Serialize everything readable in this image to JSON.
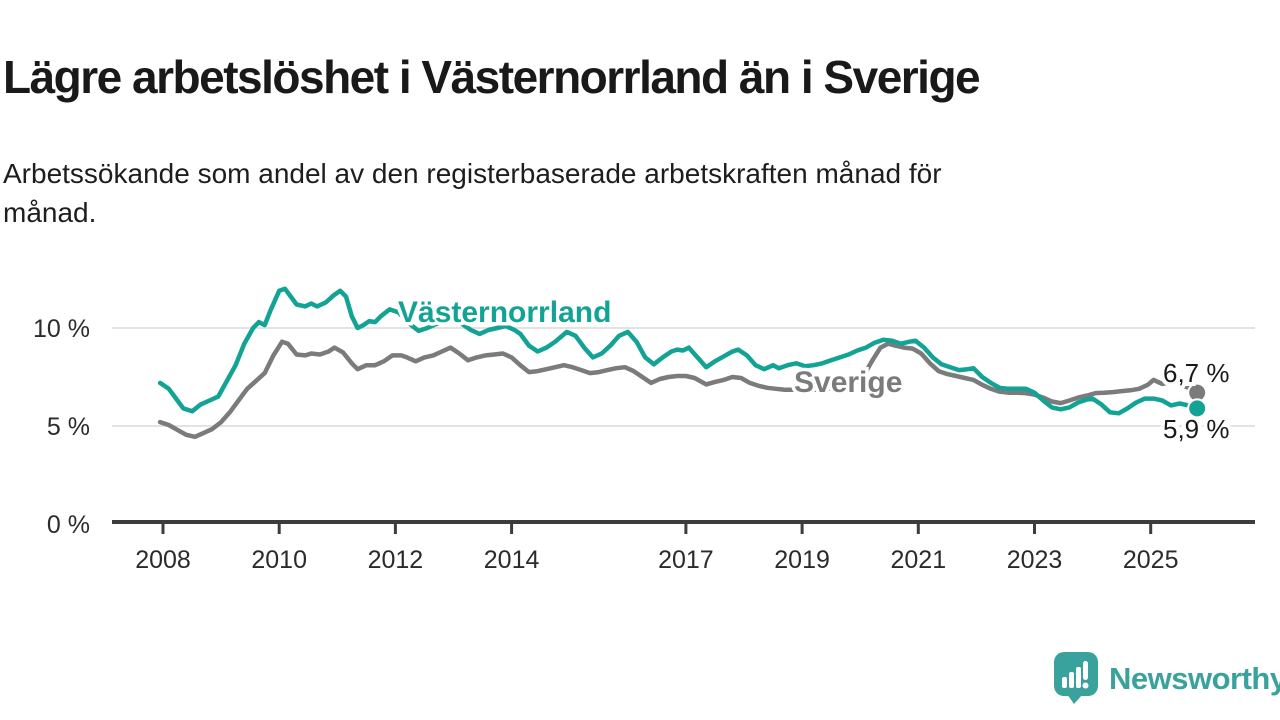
{
  "header": {
    "title": "Lägre arbetslöshet i Västernorrland än i Sverige",
    "subtitle_line1": "Arbetssökande som andel av den registerbaserade arbetskraften månad för",
    "subtitle_line2": "månad."
  },
  "chart_data": {
    "type": "line",
    "title": "Lägre arbetslöshet i Västernorrland än i Sverige",
    "subtitle": "Arbetssökande som andel av den registerbaserade arbetskraften månad för månad.",
    "grid": "horizontal-only",
    "legend_position": "inline-labels-on-lines",
    "xlim": [
      2007.9,
      2026.8
    ],
    "ylim": [
      0,
      12.6
    ],
    "y_axis": {
      "ticks": [
        {
          "value": 0,
          "label": "0 %"
        },
        {
          "value": 5,
          "label": "5 %"
        },
        {
          "value": 10,
          "label": "10 %"
        }
      ],
      "gridline_values": [
        5,
        10
      ]
    },
    "x_axis": {
      "ticks": [
        {
          "year": 2008,
          "label": "2008"
        },
        {
          "year": 2010,
          "label": "2010"
        },
        {
          "year": 2012,
          "label": "2012"
        },
        {
          "year": 2014,
          "label": "2014"
        },
        {
          "year": 2017,
          "label": "2017"
        },
        {
          "year": 2019,
          "label": "2019"
        },
        {
          "year": 2021,
          "label": "2021"
        },
        {
          "year": 2023,
          "label": "2023"
        },
        {
          "year": 2025,
          "label": "2025"
        }
      ]
    },
    "series": [
      {
        "name": "Västernorrland",
        "color": "#13a394",
        "end_label": "5,9 %",
        "end_value": 5.9,
        "points": [
          [
            2007.95,
            7.2
          ],
          [
            2008.1,
            6.9
          ],
          [
            2008.2,
            6.5
          ],
          [
            2008.35,
            5.9
          ],
          [
            2008.5,
            5.75
          ],
          [
            2008.65,
            6.1
          ],
          [
            2008.8,
            6.3
          ],
          [
            2008.95,
            6.5
          ],
          [
            2009.1,
            7.3
          ],
          [
            2009.25,
            8.1
          ],
          [
            2009.4,
            9.2
          ],
          [
            2009.55,
            10.0
          ],
          [
            2009.65,
            10.3
          ],
          [
            2009.75,
            10.15
          ],
          [
            2009.85,
            10.9
          ],
          [
            2010.0,
            11.9
          ],
          [
            2010.1,
            12.0
          ],
          [
            2010.2,
            11.6
          ],
          [
            2010.3,
            11.2
          ],
          [
            2010.45,
            11.1
          ],
          [
            2010.55,
            11.25
          ],
          [
            2010.65,
            11.1
          ],
          [
            2010.8,
            11.3
          ],
          [
            2010.95,
            11.7
          ],
          [
            2011.05,
            11.9
          ],
          [
            2011.15,
            11.6
          ],
          [
            2011.25,
            10.6
          ],
          [
            2011.35,
            10.0
          ],
          [
            2011.45,
            10.15
          ],
          [
            2011.55,
            10.35
          ],
          [
            2011.65,
            10.3
          ],
          [
            2011.75,
            10.6
          ],
          [
            2011.9,
            10.95
          ],
          [
            2012.05,
            10.8
          ],
          [
            2012.25,
            10.2
          ],
          [
            2012.4,
            9.85
          ],
          [
            2012.55,
            10.0
          ],
          [
            2012.7,
            10.2
          ],
          [
            2012.85,
            10.4
          ],
          [
            2013.0,
            10.5
          ],
          [
            2013.15,
            10.2
          ],
          [
            2013.3,
            9.9
          ],
          [
            2013.45,
            9.7
          ],
          [
            2013.6,
            9.9
          ],
          [
            2013.75,
            10.0
          ],
          [
            2013.9,
            10.1
          ],
          [
            2014.05,
            9.9
          ],
          [
            2014.15,
            9.7
          ],
          [
            2014.3,
            9.1
          ],
          [
            2014.45,
            8.8
          ],
          [
            2014.6,
            9.0
          ],
          [
            2014.75,
            9.3
          ],
          [
            2014.95,
            9.8
          ],
          [
            2015.1,
            9.6
          ],
          [
            2015.25,
            9.0
          ],
          [
            2015.4,
            8.5
          ],
          [
            2015.55,
            8.7
          ],
          [
            2015.7,
            9.1
          ],
          [
            2015.85,
            9.6
          ],
          [
            2016.0,
            9.8
          ],
          [
            2016.15,
            9.3
          ],
          [
            2016.3,
            8.5
          ],
          [
            2016.45,
            8.15
          ],
          [
            2016.6,
            8.5
          ],
          [
            2016.75,
            8.8
          ],
          [
            2016.85,
            8.9
          ],
          [
            2016.95,
            8.85
          ],
          [
            2017.05,
            9.0
          ],
          [
            2017.2,
            8.5
          ],
          [
            2017.35,
            8.0
          ],
          [
            2017.5,
            8.3
          ],
          [
            2017.65,
            8.55
          ],
          [
            2017.8,
            8.8
          ],
          [
            2017.9,
            8.9
          ],
          [
            2018.05,
            8.6
          ],
          [
            2018.2,
            8.1
          ],
          [
            2018.35,
            7.9
          ],
          [
            2018.5,
            8.1
          ],
          [
            2018.6,
            7.95
          ],
          [
            2018.75,
            8.1
          ],
          [
            2018.9,
            8.2
          ],
          [
            2019.05,
            8.05
          ],
          [
            2019.2,
            8.1
          ],
          [
            2019.35,
            8.2
          ],
          [
            2019.5,
            8.35
          ],
          [
            2019.65,
            8.5
          ],
          [
            2019.8,
            8.65
          ],
          [
            2019.95,
            8.85
          ],
          [
            2020.1,
            9.0
          ],
          [
            2020.25,
            9.25
          ],
          [
            2020.4,
            9.4
          ],
          [
            2020.55,
            9.35
          ],
          [
            2020.7,
            9.2
          ],
          [
            2020.85,
            9.3
          ],
          [
            2020.95,
            9.35
          ],
          [
            2021.1,
            9.0
          ],
          [
            2021.25,
            8.5
          ],
          [
            2021.4,
            8.15
          ],
          [
            2021.55,
            8.0
          ],
          [
            2021.7,
            7.85
          ],
          [
            2021.85,
            7.9
          ],
          [
            2021.95,
            7.95
          ],
          [
            2022.1,
            7.5
          ],
          [
            2022.25,
            7.2
          ],
          [
            2022.4,
            6.95
          ],
          [
            2022.55,
            6.9
          ],
          [
            2022.7,
            6.9
          ],
          [
            2022.85,
            6.9
          ],
          [
            2023.0,
            6.7
          ],
          [
            2023.15,
            6.3
          ],
          [
            2023.3,
            5.95
          ],
          [
            2023.45,
            5.85
          ],
          [
            2023.6,
            5.95
          ],
          [
            2023.75,
            6.2
          ],
          [
            2023.9,
            6.35
          ],
          [
            2024.0,
            6.4
          ],
          [
            2024.15,
            6.1
          ],
          [
            2024.3,
            5.7
          ],
          [
            2024.45,
            5.65
          ],
          [
            2024.6,
            5.9
          ],
          [
            2024.75,
            6.2
          ],
          [
            2024.9,
            6.4
          ],
          [
            2025.05,
            6.4
          ],
          [
            2025.2,
            6.3
          ],
          [
            2025.35,
            6.05
          ],
          [
            2025.5,
            6.15
          ],
          [
            2025.65,
            6.05
          ],
          [
            2025.8,
            5.9
          ]
        ]
      },
      {
        "name": "Sverige",
        "color": "#7b7b7b",
        "end_label": "6,7 %",
        "end_value": 6.7,
        "points": [
          [
            2007.95,
            5.2
          ],
          [
            2008.1,
            5.05
          ],
          [
            2008.25,
            4.8
          ],
          [
            2008.4,
            4.55
          ],
          [
            2008.55,
            4.45
          ],
          [
            2008.7,
            4.65
          ],
          [
            2008.85,
            4.85
          ],
          [
            2009.0,
            5.2
          ],
          [
            2009.15,
            5.7
          ],
          [
            2009.3,
            6.3
          ],
          [
            2009.45,
            6.9
          ],
          [
            2009.6,
            7.3
          ],
          [
            2009.75,
            7.7
          ],
          [
            2009.9,
            8.6
          ],
          [
            2010.05,
            9.3
          ],
          [
            2010.15,
            9.2
          ],
          [
            2010.3,
            8.65
          ],
          [
            2010.45,
            8.6
          ],
          [
            2010.55,
            8.7
          ],
          [
            2010.7,
            8.65
          ],
          [
            2010.85,
            8.8
          ],
          [
            2010.95,
            9.0
          ],
          [
            2011.1,
            8.75
          ],
          [
            2011.25,
            8.2
          ],
          [
            2011.35,
            7.9
          ],
          [
            2011.5,
            8.1
          ],
          [
            2011.65,
            8.1
          ],
          [
            2011.8,
            8.3
          ],
          [
            2011.95,
            8.6
          ],
          [
            2012.1,
            8.6
          ],
          [
            2012.2,
            8.5
          ],
          [
            2012.35,
            8.3
          ],
          [
            2012.5,
            8.5
          ],
          [
            2012.65,
            8.6
          ],
          [
            2012.8,
            8.8
          ],
          [
            2012.95,
            9.0
          ],
          [
            2013.1,
            8.7
          ],
          [
            2013.25,
            8.35
          ],
          [
            2013.4,
            8.5
          ],
          [
            2013.55,
            8.6
          ],
          [
            2013.7,
            8.65
          ],
          [
            2013.85,
            8.7
          ],
          [
            2014.0,
            8.5
          ],
          [
            2014.15,
            8.1
          ],
          [
            2014.3,
            7.75
          ],
          [
            2014.45,
            7.8
          ],
          [
            2014.6,
            7.9
          ],
          [
            2014.75,
            8.0
          ],
          [
            2014.9,
            8.1
          ],
          [
            2015.05,
            8.0
          ],
          [
            2015.2,
            7.85
          ],
          [
            2015.35,
            7.7
          ],
          [
            2015.5,
            7.75
          ],
          [
            2015.65,
            7.85
          ],
          [
            2015.8,
            7.95
          ],
          [
            2015.95,
            8.0
          ],
          [
            2016.1,
            7.8
          ],
          [
            2016.25,
            7.5
          ],
          [
            2016.4,
            7.2
          ],
          [
            2016.55,
            7.4
          ],
          [
            2016.7,
            7.5
          ],
          [
            2016.85,
            7.55
          ],
          [
            2017.0,
            7.55
          ],
          [
            2017.15,
            7.45
          ],
          [
            2017.35,
            7.12
          ],
          [
            2017.5,
            7.25
          ],
          [
            2017.65,
            7.35
          ],
          [
            2017.8,
            7.5
          ],
          [
            2017.95,
            7.45
          ],
          [
            2018.1,
            7.2
          ],
          [
            2018.25,
            7.05
          ],
          [
            2018.4,
            6.95
          ],
          [
            2018.55,
            6.9
          ],
          [
            2018.7,
            6.85
          ],
          [
            2018.85,
            6.85
          ],
          [
            2019.0,
            6.9
          ],
          [
            2019.15,
            6.85
          ],
          [
            2019.3,
            6.85
          ],
          [
            2019.45,
            6.9
          ],
          [
            2019.6,
            6.95
          ],
          [
            2019.75,
            7.0
          ],
          [
            2019.9,
            7.2
          ],
          [
            2020.05,
            7.5
          ],
          [
            2020.2,
            8.3
          ],
          [
            2020.35,
            9.0
          ],
          [
            2020.48,
            9.2
          ],
          [
            2020.6,
            9.1
          ],
          [
            2020.75,
            9.0
          ],
          [
            2020.9,
            8.95
          ],
          [
            2021.05,
            8.7
          ],
          [
            2021.2,
            8.2
          ],
          [
            2021.35,
            7.8
          ],
          [
            2021.5,
            7.65
          ],
          [
            2021.65,
            7.55
          ],
          [
            2021.8,
            7.45
          ],
          [
            2021.95,
            7.35
          ],
          [
            2022.1,
            7.1
          ],
          [
            2022.25,
            6.9
          ],
          [
            2022.4,
            6.75
          ],
          [
            2022.55,
            6.7
          ],
          [
            2022.7,
            6.7
          ],
          [
            2022.85,
            6.68
          ],
          [
            2023.0,
            6.6
          ],
          [
            2023.15,
            6.45
          ],
          [
            2023.3,
            6.25
          ],
          [
            2023.45,
            6.17
          ],
          [
            2023.6,
            6.3
          ],
          [
            2023.75,
            6.45
          ],
          [
            2023.9,
            6.55
          ],
          [
            2024.05,
            6.68
          ],
          [
            2024.2,
            6.7
          ],
          [
            2024.35,
            6.73
          ],
          [
            2024.5,
            6.78
          ],
          [
            2024.65,
            6.82
          ],
          [
            2024.8,
            6.9
          ],
          [
            2024.95,
            7.1
          ],
          [
            2025.05,
            7.35
          ],
          [
            2025.2,
            7.15
          ],
          [
            2025.35,
            7.25
          ],
          [
            2025.5,
            7.1
          ],
          [
            2025.65,
            6.95
          ],
          [
            2025.8,
            6.7
          ]
        ]
      }
    ],
    "colors": {
      "grid": "#e3e3e3",
      "axis": "#3c3c3c",
      "vasternorrland": "#13a394",
      "sverige": "#7b7b7b"
    }
  },
  "footer": {
    "brand": "Newsworthy",
    "brand_color": "#3aa29c"
  }
}
